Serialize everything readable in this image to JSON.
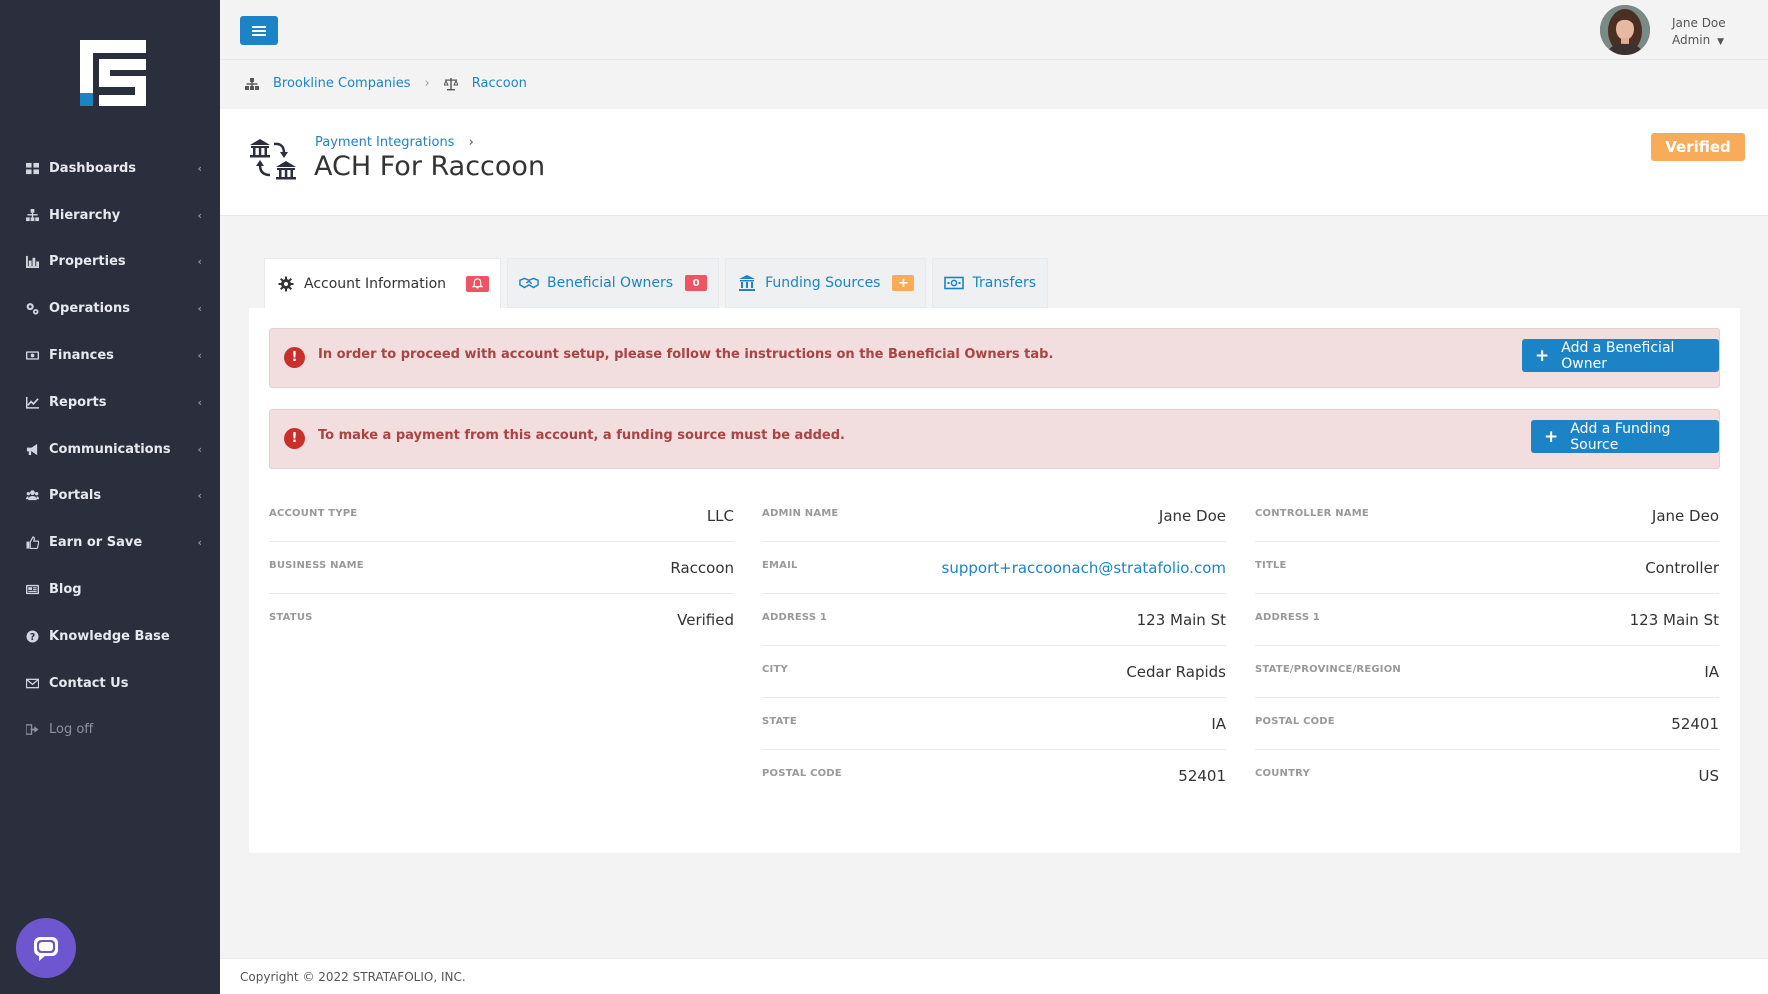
{
  "sidebar": {
    "items": [
      {
        "label": "Dashboards",
        "icon": "dashboard-icon"
      },
      {
        "label": "Hierarchy",
        "icon": "hierarchy-icon"
      },
      {
        "label": "Properties",
        "icon": "bar-chart-icon"
      },
      {
        "label": "Operations",
        "icon": "cogs-icon"
      },
      {
        "label": "Finances",
        "icon": "money-icon"
      },
      {
        "label": "Reports",
        "icon": "line-chart-icon"
      },
      {
        "label": "Communications",
        "icon": "bullhorn-icon"
      },
      {
        "label": "Portals",
        "icon": "users-icon"
      },
      {
        "label": "Earn or Save",
        "icon": "thumbs-up-icon"
      },
      {
        "label": "Blog",
        "icon": "newspaper-icon"
      },
      {
        "label": "Knowledge Base",
        "icon": "question-circle-icon"
      },
      {
        "label": "Contact Us",
        "icon": "envelope-icon"
      },
      {
        "label": "Log off",
        "icon": "sign-out-icon"
      }
    ]
  },
  "topbar": {
    "user_name": "Jane Doe",
    "user_role": "Admin"
  },
  "breadcrumb": {
    "company": "Brookline Companies",
    "entity": "Raccoon"
  },
  "header": {
    "subtitle": "Payment Integrations",
    "title": "ACH For Raccoon",
    "status_badge": "Verified"
  },
  "tabs": [
    {
      "label": "Account Information",
      "badge": "bell"
    },
    {
      "label": "Beneficial Owners",
      "badge": "0"
    },
    {
      "label": "Funding Sources",
      "badge": "+"
    },
    {
      "label": "Transfers"
    }
  ],
  "alerts": [
    {
      "text": "In order to proceed with account setup, please follow the instructions on the Beneficial Owners tab.",
      "button": "Add a Beneficial Owner"
    },
    {
      "text": "To make a payment from this account, a funding source must be added.",
      "button": "Add a Funding Source"
    }
  ],
  "details": {
    "col1": [
      {
        "key": "ACCOUNT TYPE",
        "value": "LLC"
      },
      {
        "key": "BUSINESS NAME",
        "value": "Raccoon"
      },
      {
        "key": "STATUS",
        "value": "Verified"
      }
    ],
    "col2": [
      {
        "key": "ADMIN NAME",
        "value": "Jane Doe"
      },
      {
        "key": "EMAIL",
        "value": "support+raccoonach@stratafolio.com"
      },
      {
        "key": "ADDRESS 1",
        "value": "123 Main St"
      },
      {
        "key": "CITY",
        "value": "Cedar Rapids"
      },
      {
        "key": "STATE",
        "value": "IA"
      },
      {
        "key": "POSTAL CODE",
        "value": "52401"
      }
    ],
    "col3": [
      {
        "key": "CONTROLLER NAME",
        "value": "Jane Deo"
      },
      {
        "key": "TITLE",
        "value": "Controller"
      },
      {
        "key": "ADDRESS 1",
        "value": "123 Main St"
      },
      {
        "key": "STATE/PROVINCE/REGION",
        "value": "IA"
      },
      {
        "key": "POSTAL CODE",
        "value": "52401"
      },
      {
        "key": "COUNTRY",
        "value": "US"
      }
    ]
  },
  "footer": {
    "copyright": "Copyright © 2022 STRATAFOLIO, INC."
  },
  "colors": {
    "sidebar_bg": "#2b2e3d",
    "primary": "#1c84c6",
    "warning": "#f8ac59",
    "danger": "#ed5565",
    "alert_bg": "#f2dede",
    "alert_text": "#a94442"
  }
}
